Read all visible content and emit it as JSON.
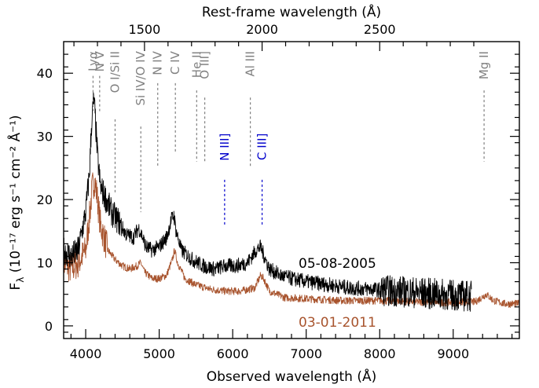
{
  "chart_data": {
    "type": "line",
    "x_axis": {
      "label": "Observed wavelength (Å)",
      "range": [
        3700,
        9900
      ],
      "ticks": [
        4000,
        5000,
        6000,
        7000,
        8000,
        9000
      ],
      "tick_labels": [
        "4000",
        "5000",
        "6000",
        "7000",
        "8000",
        "9000"
      ]
    },
    "top_axis": {
      "label": "Rest-frame wavelength (Å)",
      "ticks": [
        1500,
        2000,
        2500
      ],
      "tick_labels": [
        "1500",
        "2000",
        "2500"
      ],
      "redshift_factor": 3.2
    },
    "y_axis": {
      "label": "F",
      "label_sub": "λ",
      "units": "(10⁻¹⁷ erg s⁻¹ cm⁻² Å⁻¹)",
      "range": [
        -2,
        45
      ],
      "ticks": [
        0,
        10,
        20,
        30,
        40
      ],
      "tick_labels": [
        "0",
        "10",
        "20",
        "30",
        "40"
      ]
    },
    "series": [
      {
        "name": "05-08-2005",
        "color": "#000000",
        "x": [
          3700,
          3800,
          3900,
          4000,
          4050,
          4080,
          4110,
          4130,
          4160,
          4200,
          4280,
          4350,
          4450,
          4550,
          4650,
          4720,
          4760,
          4820,
          4900,
          5000,
          5100,
          5170,
          5200,
          5230,
          5300,
          5450,
          5600,
          5750,
          5900,
          6050,
          6200,
          6320,
          6380,
          6430,
          6500,
          6650,
          6800,
          7000,
          7300,
          7600,
          7900,
          8200,
          8500,
          8800,
          9100,
          9250
        ],
        "y": [
          12,
          11,
          12,
          18,
          24,
          32,
          36,
          33,
          27,
          22,
          20,
          18,
          16.5,
          14.5,
          14,
          15.5,
          14.5,
          12.5,
          12,
          12.5,
          14,
          17,
          17.5,
          15,
          12,
          10.5,
          9.5,
          9,
          9.5,
          9.5,
          10,
          12,
          12.5,
          11,
          9,
          8,
          7.5,
          7,
          6.5,
          6,
          5.8,
          5.5,
          5.3,
          5,
          4.8,
          4.7
        ]
      },
      {
        "name": "03-01-2011",
        "color": "#a8542e",
        "x": [
          3700,
          3800,
          3900,
          4000,
          4050,
          4090,
          4120,
          4150,
          4200,
          4300,
          4400,
          4500,
          4600,
          4700,
          4750,
          4800,
          4900,
          5000,
          5100,
          5180,
          5210,
          5250,
          5350,
          5500,
          5700,
          5900,
          6100,
          6300,
          6380,
          6420,
          6500,
          6700,
          7000,
          7500,
          8000,
          8500,
          9000,
          9300,
          9450,
          9550,
          9700,
          9900
        ],
        "y": [
          10,
          9,
          10,
          12,
          17,
          22,
          23,
          21,
          16,
          12,
          10.5,
          9.5,
          9,
          9.5,
          10,
          8.5,
          7.5,
          7.5,
          8,
          10.5,
          12,
          10,
          7.5,
          6.5,
          5.8,
          5.5,
          5.5,
          6,
          8,
          7.5,
          5.5,
          4.5,
          4.3,
          4,
          4,
          3.8,
          3.7,
          3.8,
          5,
          4,
          3.5,
          3.5
        ]
      }
    ],
    "legend": [
      {
        "label": "05-08-2005",
        "color": "#000000"
      },
      {
        "label": "03-01-2011",
        "color": "#a8542e"
      }
    ],
    "line_markers": [
      {
        "label": "Lyα",
        "x": 4100,
        "color": "#808080",
        "y_text_top": 43.5,
        "y_dash_bottom": 34
      },
      {
        "label": "N V",
        "x": 4190,
        "color": "#808080",
        "y_text_top": 43.5,
        "y_dash_bottom": 34
      },
      {
        "label": "O I/Si II",
        "x": 4400,
        "color": "#808080",
        "y_text_top": 43.5,
        "y_dash_bottom": 21
      },
      {
        "label": "Si IV/O IV",
        "x": 4750,
        "color": "#808080",
        "y_text_top": 43.5,
        "y_dash_bottom": 18
      },
      {
        "label": "N IV",
        "x": 4980,
        "color": "#808080",
        "y_text_top": 43.5,
        "y_dash_bottom": 25
      },
      {
        "label": "C IV",
        "x": 5220,
        "color": "#808080",
        "y_text_top": 43.5,
        "y_dash_bottom": 27.5
      },
      {
        "label": "He II",
        "x": 5510,
        "color": "#808080",
        "y_text_top": 43.5,
        "y_dash_bottom": 26
      },
      {
        "label": "O III]",
        "x": 5620,
        "color": "#808080",
        "y_text_top": 43.5,
        "y_dash_bottom": 26
      },
      {
        "label": "Al III",
        "x": 6240,
        "color": "#808080",
        "y_text_top": 43.5,
        "y_dash_bottom": 25
      },
      {
        "label": "Mg II",
        "x": 9420,
        "color": "#808080",
        "y_text_top": 43.5,
        "y_dash_bottom": 26
      },
      {
        "label": "N III]",
        "x": 5890,
        "color": "#0000cc",
        "y_text_top": 30.5,
        "y_dash_bottom": 16
      },
      {
        "label": "C III]",
        "x": 6400,
        "color": "#0000cc",
        "y_text_top": 30.5,
        "y_dash_bottom": 16
      }
    ]
  }
}
